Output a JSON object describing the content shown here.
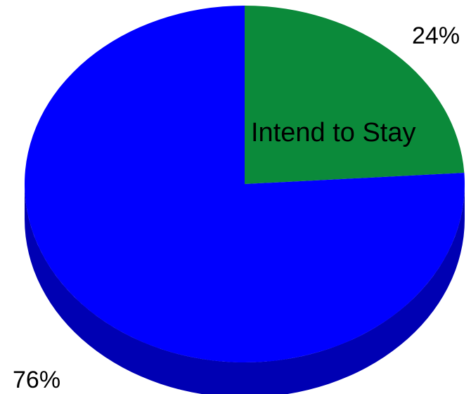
{
  "chart_data": {
    "type": "pie",
    "title": "",
    "slices": [
      {
        "label": "Intend to Stay",
        "value": 24,
        "value_label": "24%",
        "color": "#0b8a3a"
      },
      {
        "label": "",
        "value": 76,
        "value_label": "76%",
        "color": "#0000ff"
      }
    ],
    "style": "3d",
    "side_color_dark": "#0000b3"
  }
}
